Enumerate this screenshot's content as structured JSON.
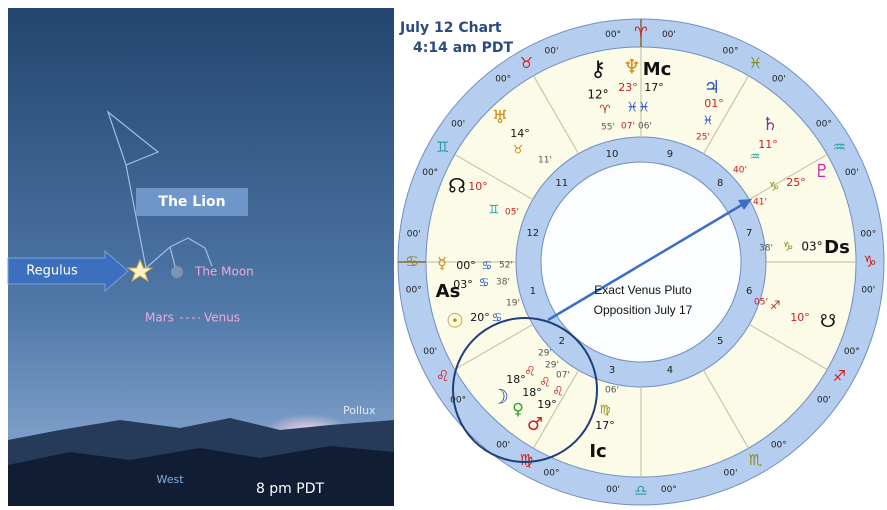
{
  "sky": {
    "constellation": "The Lion",
    "regulus": "Regulus",
    "moon": "The Moon",
    "mars": "Mars",
    "venus": "Venus",
    "pollux": "Pollux",
    "direction": "West",
    "time": "8 pm PDT"
  },
  "chart": {
    "title": "July 12 Chart",
    "time": "4:14 am PDT",
    "houses": [
      "1",
      "2",
      "3",
      "4",
      "5",
      "6",
      "7",
      "8",
      "9",
      "10",
      "11",
      "12"
    ],
    "cusps": [
      {
        "sign": "♈",
        "deg": "00°",
        "min": "00'"
      },
      {
        "sign": "♓",
        "deg": "00°",
        "min": "00'"
      },
      {
        "sign": "♒",
        "deg": "00°",
        "min": "00'"
      },
      {
        "sign": "♑",
        "deg": "00°",
        "min": "00'"
      },
      {
        "sign": "♐",
        "deg": "00°",
        "min": "00'"
      },
      {
        "sign": "♏",
        "deg": "00°",
        "min": "00'"
      },
      {
        "sign": "♎",
        "deg": "00°",
        "min": "00'"
      },
      {
        "sign": "♍",
        "deg": "00°",
        "min": "00'"
      },
      {
        "sign": "♌",
        "deg": "00°",
        "min": "00'"
      },
      {
        "sign": "♋",
        "deg": "00°",
        "min": "00'"
      },
      {
        "sign": "♊",
        "deg": "00°",
        "min": "00'"
      },
      {
        "sign": "♉",
        "deg": "00°",
        "min": "00'"
      }
    ],
    "texts": [
      "⚷",
      "12°",
      "♈",
      "55'",
      "♆",
      "Mc",
      "23°",
      "17°",
      "♓♓",
      "07'",
      "06'",
      "♃",
      "01°",
      "♓",
      "25'",
      "♅",
      "14°",
      "♉",
      "11'",
      "♄",
      "11°",
      "♒",
      "40'",
      "♇",
      "25°",
      "♑",
      "41'",
      "☊",
      "10°",
      "♊",
      "05'",
      "38'",
      "♑",
      "03°",
      "Ds",
      "☿",
      "00°",
      "♋",
      "52'",
      "03°",
      "♋",
      "38'",
      "As",
      "☉",
      "20°",
      "♋",
      "19'",
      "05'",
      "♐",
      "10°",
      "☋",
      "29'",
      "29'",
      "07'",
      "♌",
      "♌",
      "♌",
      "18°",
      "18°",
      "19°",
      "☽",
      "♀",
      "♂",
      "06'",
      "♍",
      "17°",
      "Ic"
    ],
    "annotation": [
      "Exact Venus Pluto",
      "Opposition July 17"
    ]
  }
}
